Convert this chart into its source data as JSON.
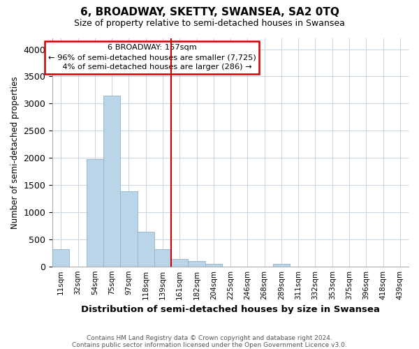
{
  "title": "6, BROADWAY, SKETTY, SWANSEA, SA2 0TQ",
  "subtitle": "Size of property relative to semi-detached houses in Swansea",
  "xlabel": "Distribution of semi-detached houses by size in Swansea",
  "ylabel": "Number of semi-detached properties",
  "categories": [
    "11sqm",
    "32sqm",
    "54sqm",
    "75sqm",
    "97sqm",
    "118sqm",
    "139sqm",
    "161sqm",
    "182sqm",
    "204sqm",
    "225sqm",
    "246sqm",
    "268sqm",
    "289sqm",
    "311sqm",
    "332sqm",
    "353sqm",
    "375sqm",
    "396sqm",
    "418sqm",
    "439sqm"
  ],
  "values": [
    320,
    0,
    1970,
    3150,
    1380,
    640,
    320,
    140,
    100,
    50,
    0,
    0,
    0,
    50,
    0,
    0,
    0,
    0,
    0,
    0,
    0
  ],
  "bar_color": "#bad4e8",
  "bar_edge_color": "#90b4cc",
  "highlight_line_index": 7,
  "highlight_line_color": "#cc0000",
  "property_size": "157sqm",
  "property_name": "6 BROADWAY",
  "pct_smaller": 96,
  "count_smaller": 7725,
  "pct_larger": 4,
  "count_larger": 286,
  "annotation_box_color": "#cc0000",
  "ylim": [
    0,
    4200
  ],
  "yticks": [
    0,
    500,
    1000,
    1500,
    2000,
    2500,
    3000,
    3500,
    4000
  ],
  "footer1": "Contains HM Land Registry data © Crown copyright and database right 2024.",
  "footer2": "Contains public sector information licensed under the Open Government Licence v3.0.",
  "background_color": "#ffffff",
  "grid_color": "#c8d4e0"
}
